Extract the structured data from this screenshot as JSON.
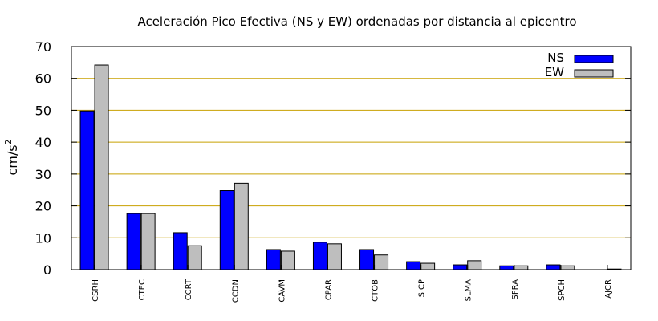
{
  "chart_data": {
    "type": "bar",
    "title": "Aceleración Pico Efectiva (NS y EW) ordenadas por distancia al epicentro",
    "ylabel": "cm/s",
    "ylabel_superscript": "2",
    "xlabel": "",
    "ylim": [
      0,
      70
    ],
    "yticks": [
      0,
      10,
      20,
      30,
      40,
      50,
      60,
      70
    ],
    "grid": "horizontal",
    "legend_position": "top-right",
    "categories": [
      "CSRH",
      "CTEC",
      "CCRT",
      "CCDN",
      "CAVM",
      "CPAR",
      "CTOB",
      "SICP",
      "SLMA",
      "SFRA",
      "SPCH",
      "AJCR"
    ],
    "series": [
      {
        "name": "NS",
        "color": "#0000ff",
        "values": [
          49.8,
          17.6,
          11.6,
          24.8,
          6.3,
          8.6,
          6.3,
          2.5,
          1.5,
          1.2,
          1.5,
          0.0
        ]
      },
      {
        "name": "EW",
        "color": "#bebebe",
        "values": [
          64.2,
          17.6,
          7.5,
          27.1,
          5.8,
          8.1,
          4.6,
          2.0,
          2.8,
          1.2,
          1.2,
          0.2
        ]
      }
    ],
    "colors": {
      "grid": "#c8a000",
      "axis": "#000000",
      "background": "#ffffff"
    }
  }
}
